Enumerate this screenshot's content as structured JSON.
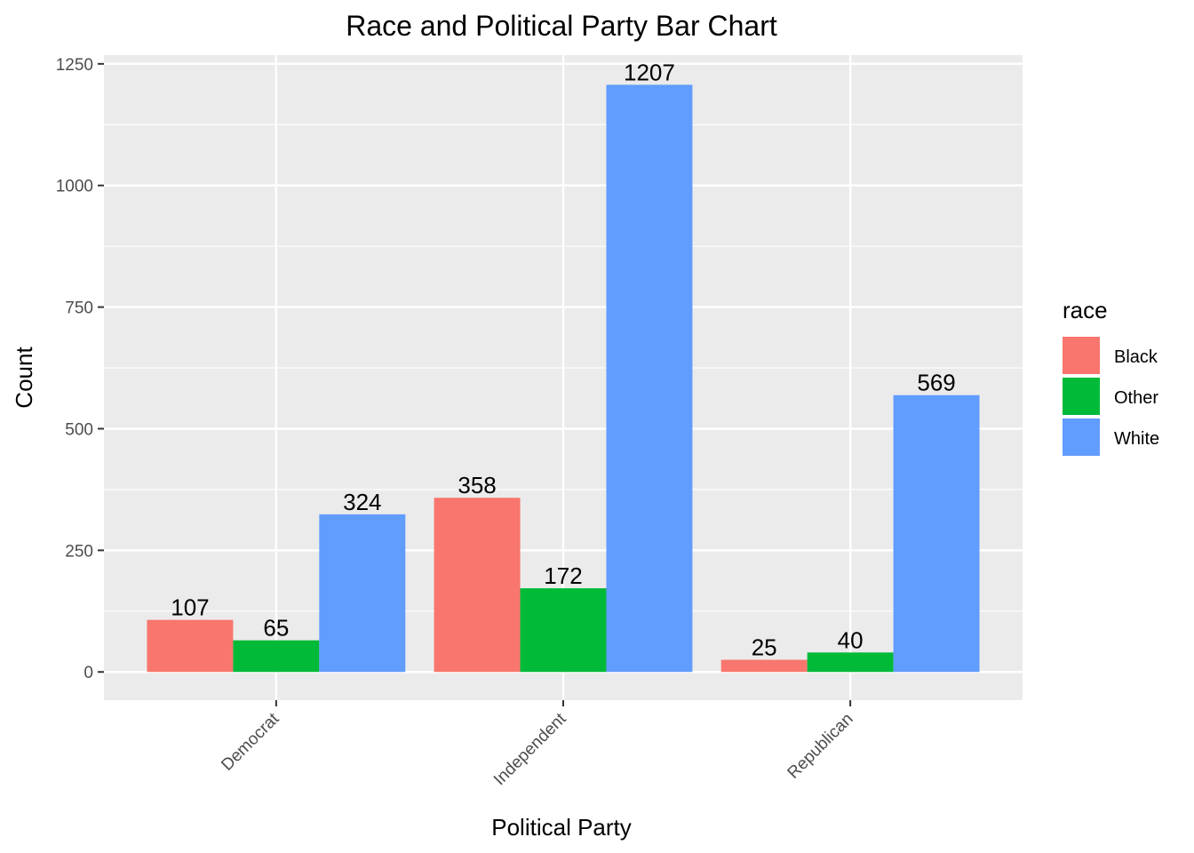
{
  "chart_data": {
    "type": "bar",
    "title": "Race and Political Party Bar Chart",
    "xlabel": "Political Party",
    "ylabel": "Count",
    "categories": [
      "Democrat",
      "Independent",
      "Republican"
    ],
    "series": [
      {
        "name": "Black",
        "color": "#F8766D",
        "values": [
          107,
          358,
          25
        ]
      },
      {
        "name": "Other",
        "color": "#00BA38",
        "values": [
          65,
          172,
          40
        ]
      },
      {
        "name": "White",
        "color": "#619CFF",
        "values": [
          324,
          1207,
          569
        ]
      }
    ],
    "ylim": [
      -58,
      1268
    ],
    "yticks": [
      0,
      250,
      500,
      750,
      1000,
      1250
    ],
    "grid": true,
    "legend": {
      "title": "race",
      "position": "right"
    },
    "panel_background": "#EBEBEB"
  }
}
